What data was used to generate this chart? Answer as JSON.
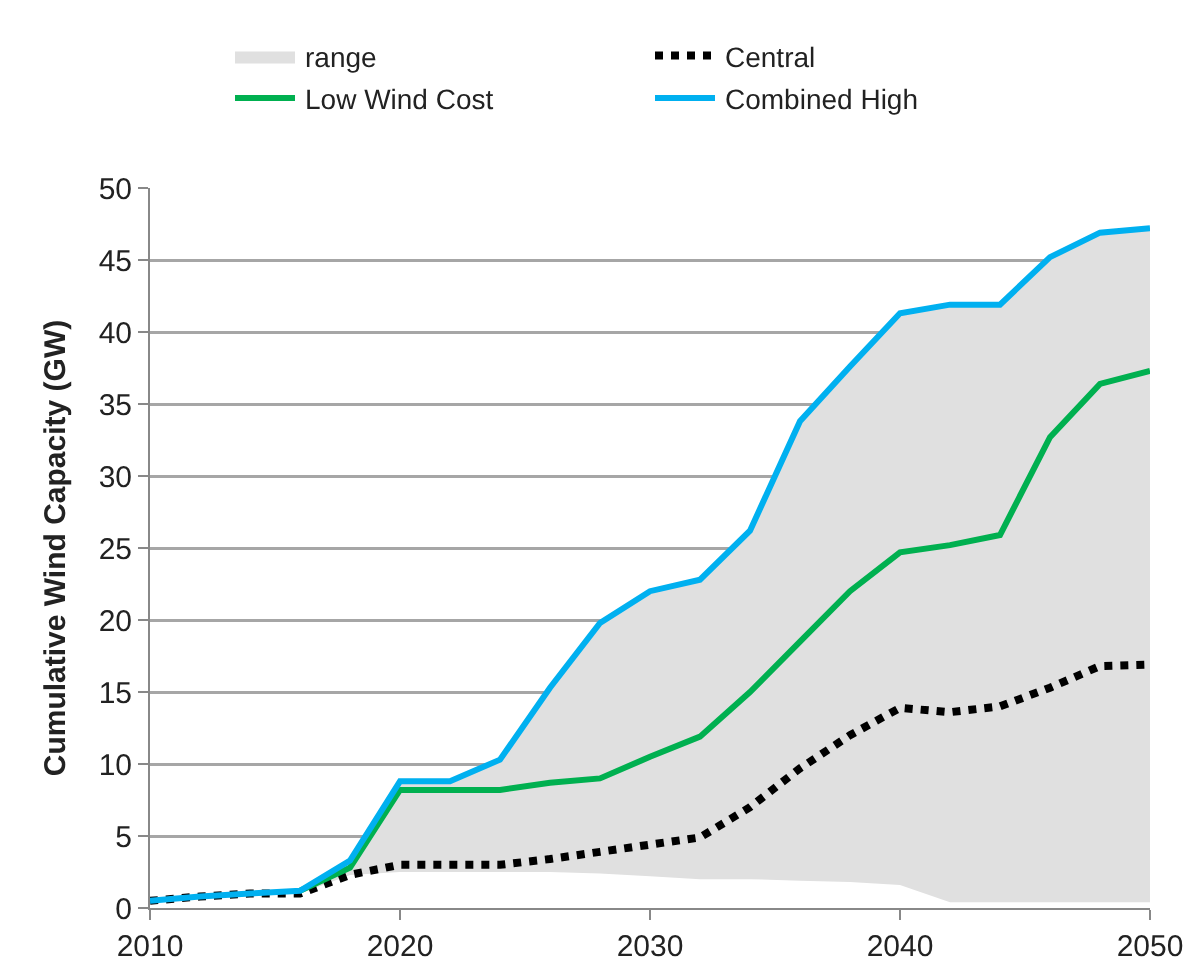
{
  "chart_data": {
    "type": "line",
    "ylabel": "Cumulative Wind Capacity (GW)",
    "x": [
      2010,
      2012,
      2014,
      2016,
      2018,
      2020,
      2022,
      2024,
      2026,
      2028,
      2030,
      2032,
      2034,
      2036,
      2038,
      2040,
      2042,
      2044,
      2046,
      2048,
      2050
    ],
    "xlim": [
      2010,
      2050
    ],
    "xticks": [
      2010,
      2020,
      2030,
      2040,
      2050
    ],
    "ylim": [
      0,
      50
    ],
    "yticks": [
      0,
      5,
      10,
      15,
      20,
      25,
      30,
      35,
      40,
      45,
      50
    ],
    "grid": "y",
    "legend": "top",
    "marker": "none",
    "annotations": [
      "range"
    ],
    "series": [
      {
        "name": "Central",
        "color": "#000000",
        "line_style": "dotted",
        "values": [
          0.5,
          0.8,
          1.0,
          1.0,
          2.3,
          3.0,
          3.0,
          3.0,
          3.4,
          3.9,
          4.4,
          4.9,
          7.0,
          9.7,
          12.0,
          13.9,
          13.6,
          14.0,
          15.3,
          16.8,
          16.9
        ]
      },
      {
        "name": "Low Wind Cost",
        "color": "#00b050",
        "line_style": "solid",
        "values": [
          null,
          null,
          null,
          1.2,
          2.8,
          8.2,
          8.2,
          8.2,
          8.7,
          9.0,
          10.5,
          11.9,
          15.0,
          18.5,
          22.0,
          24.7,
          25.2,
          25.9,
          32.7,
          36.4,
          37.3
        ]
      },
      {
        "name": "Combined High",
        "color": "#00b0f0",
        "line_style": "solid",
        "values": [
          0.5,
          0.8,
          1.0,
          1.2,
          3.3,
          8.8,
          8.8,
          10.3,
          15.3,
          19.8,
          22.0,
          22.8,
          26.2,
          33.8,
          37.6,
          41.3,
          41.9,
          41.9,
          45.2,
          46.9,
          47.2
        ],
        "lower": [
          0.5,
          0.8,
          1.0,
          1.0,
          2.3,
          2.5,
          2.5,
          2.5,
          2.5,
          2.4,
          2.2,
          2.0,
          2.0,
          1.9,
          1.8,
          1.6,
          0.4,
          0.4,
          0.4,
          0.4,
          0.4
        ],
        "upper": [
          0.5,
          0.8,
          1.0,
          1.2,
          3.3,
          8.8,
          8.8,
          10.3,
          15.3,
          19.8,
          22.0,
          22.8,
          26.2,
          33.8,
          37.6,
          41.3,
          41.9,
          41.9,
          45.2,
          46.9,
          47.2
        ]
      }
    ]
  }
}
